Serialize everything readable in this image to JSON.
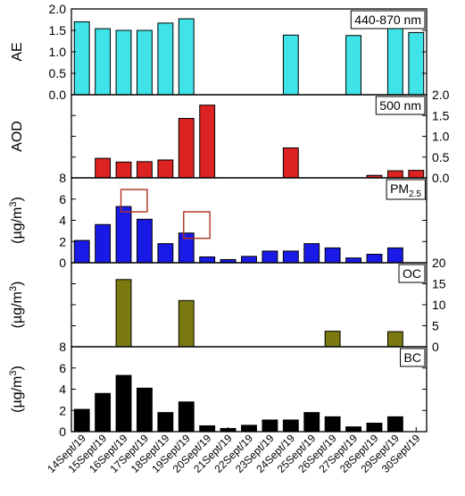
{
  "chart_data": {
    "type": "bar",
    "layout": "stacked-panels-shared-x",
    "categories": [
      "14Sept/19",
      "15Sept/19",
      "16Sept/19",
      "17Sept/19",
      "18Sept/19",
      "19Sept/19",
      "20Sept/19",
      "21Sept/19",
      "22Sept/19",
      "23Sept/19",
      "24Sept/19",
      "25Sept/19",
      "26Sept/19",
      "27Sept/19",
      "28Sept/19",
      "29Sept/19",
      "30Sept/19"
    ],
    "panels": [
      {
        "ylabel": "AE",
        "ylabel_sub": "",
        "ylabel_sup": "",
        "label": "440-870 nm",
        "label_sub": "",
        "axis_side": "left",
        "ylim": [
          0,
          2.0
        ],
        "ticks": [
          "0.0",
          "0.5",
          "1.0",
          "1.5",
          "2.0"
        ],
        "tick_values": [
          0,
          0.5,
          1.0,
          1.5,
          2.0
        ],
        "color": "#3fe3e8",
        "values": [
          1.7,
          1.54,
          1.5,
          1.5,
          1.67,
          1.77,
          null,
          null,
          null,
          null,
          1.39,
          null,
          null,
          1.38,
          null,
          1.55,
          1.45
        ]
      },
      {
        "ylabel": "AOD",
        "ylabel_sub": "",
        "ylabel_sup": "",
        "label": "500 nm",
        "label_sub": "",
        "axis_side": "right",
        "ylim": [
          0,
          2.0
        ],
        "ticks": [
          "0.0",
          "0.5",
          "1.0",
          "1.5",
          "2.0"
        ],
        "tick_values": [
          0,
          0.5,
          1.0,
          1.5,
          2.0
        ],
        "color": "#dd2222",
        "values": [
          null,
          0.47,
          0.38,
          0.39,
          0.43,
          1.43,
          1.75,
          null,
          null,
          null,
          0.72,
          null,
          null,
          null,
          0.06,
          0.17,
          0.18
        ]
      },
      {
        "ylabel": "(µg/m",
        "ylabel_sub": "",
        "ylabel_sup": "3",
        "ylabel_tail": ")",
        "label": "PM",
        "label_sub": "2.5",
        "axis_side": "left",
        "ylim": [
          0,
          8
        ],
        "ticks": [
          "0",
          "2",
          "4",
          "6",
          "8"
        ],
        "tick_values": [
          0,
          2,
          4,
          6,
          8
        ],
        "color": "#1a1ae6",
        "values": [
          2.1,
          3.6,
          5.3,
          4.1,
          1.8,
          2.8,
          0.55,
          0.3,
          0.6,
          1.1,
          1.1,
          1.8,
          1.4,
          0.45,
          0.8,
          1.4,
          null
        ],
        "highlight_boxes": [
          {
            "from_category": "16Sept/19",
            "to_category": "17Sept/19",
            "range": [
              4.8,
              6.9
            ]
          },
          {
            "from_category": "19Sept/19",
            "to_category": "20Sept/19",
            "range": [
              2.3,
              4.8
            ]
          }
        ]
      },
      {
        "ylabel": "(µg/m",
        "ylabel_sub": "",
        "ylabel_sup": "3",
        "ylabel_tail": ")",
        "label": "OC",
        "label_sub": "",
        "axis_side": "right",
        "ylim": [
          0,
          20
        ],
        "ticks": [
          "0",
          "5",
          "10",
          "15",
          "20"
        ],
        "tick_values": [
          0,
          5,
          10,
          15,
          20
        ],
        "color": "#7a7a10",
        "values": [
          null,
          null,
          16.0,
          null,
          null,
          11.0,
          null,
          null,
          null,
          null,
          null,
          null,
          3.7,
          null,
          null,
          3.6,
          null
        ]
      },
      {
        "ylabel": "(µg/m",
        "ylabel_sub": "",
        "ylabel_sup": "3",
        "ylabel_tail": ")",
        "label": "BC",
        "label_sub": "",
        "axis_side": "left",
        "ylim": [
          0,
          8
        ],
        "ticks": [
          "0",
          "2",
          "4",
          "6",
          "8"
        ],
        "tick_values": [
          0,
          2,
          4,
          6,
          8
        ],
        "color": "#000000",
        "values": [
          2.1,
          3.6,
          5.3,
          4.1,
          1.8,
          2.8,
          0.55,
          0.3,
          0.6,
          1.1,
          1.1,
          1.8,
          1.4,
          0.45,
          0.8,
          1.4,
          null
        ]
      }
    ]
  }
}
